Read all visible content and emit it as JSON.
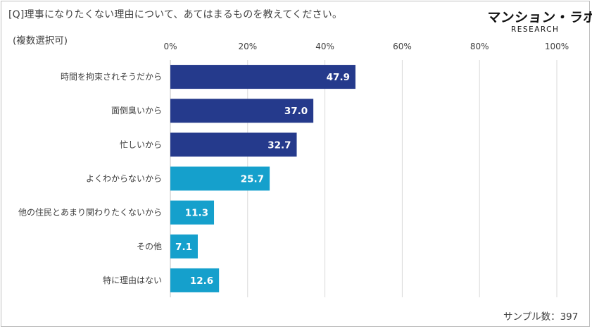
{
  "header": {
    "question": "[Q]理事になりたくない理由について、あてはまるものを教えてください。",
    "subtitle": "(複数選択可)"
  },
  "logo": {
    "main": "マンション・ラボ",
    "sub": "RESEARCH"
  },
  "footer": {
    "sample_size": "サンプル数：397"
  },
  "colors": {
    "dark_bar": "#253a8c",
    "light_bar": "#15a0cc",
    "grid": "#d9d9d9",
    "axis": "#bfbfbf"
  },
  "chart_data": {
    "type": "bar",
    "orientation": "horizontal",
    "title": "[Q]理事になりたくない理由について、あてはまるものを教えてください。",
    "xlabel": "",
    "ylabel": "",
    "xlim": [
      0,
      100
    ],
    "ticks": [
      0,
      20,
      40,
      60,
      80,
      100
    ],
    "tick_labels": [
      "0%",
      "20%",
      "40%",
      "60%",
      "80%",
      "100%"
    ],
    "categories": [
      "時間を拘束されそうだから",
      "面倒臭いから",
      "忙しいから",
      "よくわからないから",
      "他の住民とあまり関わりたくないから",
      "その他",
      "特に理由はない"
    ],
    "values": [
      47.9,
      37.0,
      32.7,
      25.7,
      11.3,
      7.1,
      12.6
    ],
    "value_labels": [
      "47.9",
      "37.0",
      "32.7",
      "25.7",
      "11.3",
      "7.1",
      "12.6"
    ],
    "bar_color_group": [
      "dark",
      "dark",
      "dark",
      "light",
      "light",
      "light",
      "light"
    ],
    "grid": true
  }
}
